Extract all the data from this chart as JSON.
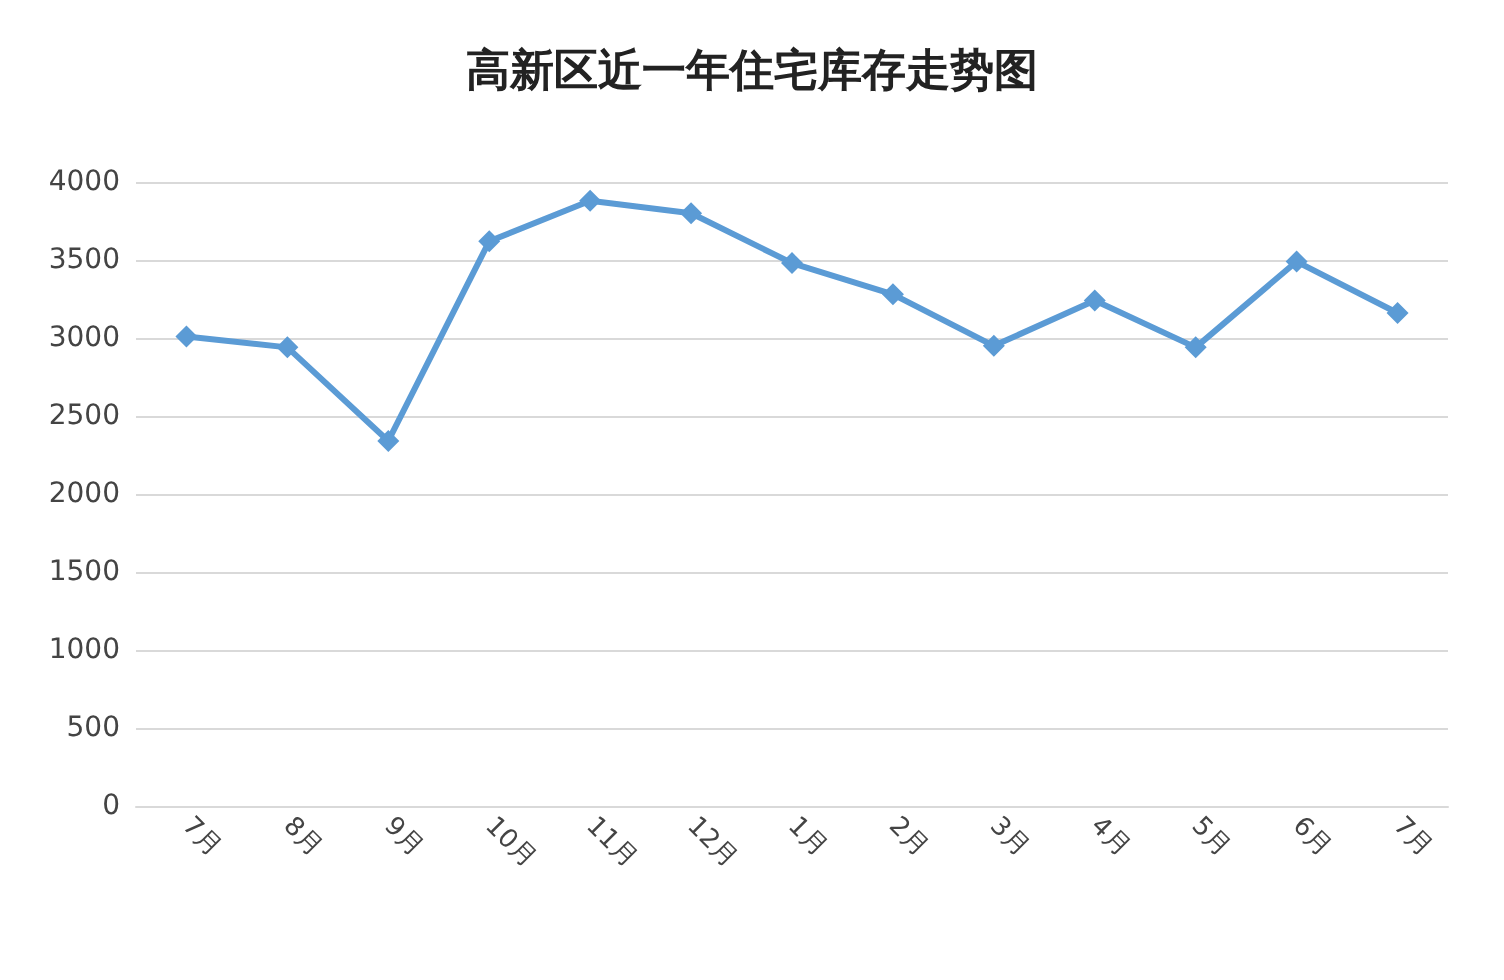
{
  "chart_data": {
    "type": "line",
    "title": "高新区近一年住宅库存走势图",
    "categories": [
      "7月",
      "8月",
      "9月",
      "10月",
      "11月",
      "12月",
      "1月",
      "2月",
      "3月",
      "4月",
      "5月",
      "6月",
      "7月"
    ],
    "series": [
      {
        "color": "#5b9bd5",
        "values": [
          3010,
          2940,
          2340,
          3620,
          3880,
          3800,
          3480,
          3280,
          2950,
          3240,
          2940,
          3490,
          3160
        ]
      }
    ],
    "ylim": [
      0,
      4000
    ],
    "yticks": [
      0,
      500,
      1000,
      1500,
      2000,
      2500,
      3000,
      3500,
      4000
    ],
    "grid": "y",
    "marker": "diamond",
    "line_style": "solid"
  }
}
